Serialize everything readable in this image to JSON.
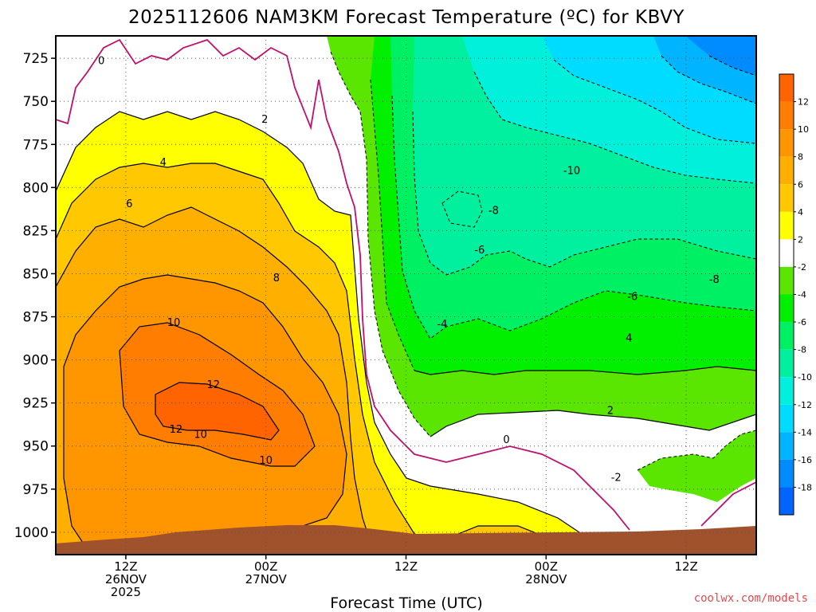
{
  "page": {
    "title": "2025112606 NAM3KM Forecast Temperature (ºC) for KBVY",
    "credit": "coolwx.com/models"
  },
  "chart_data": {
    "type": "heatmap",
    "title": "2025112606 NAM3KM Forecast Temperature (ºC) for KBVY",
    "xlabel": "Forecast Time (UTC)",
    "ylabel": "",
    "y_axis": {
      "scale": "pressure (inverted)",
      "ylim": [
        1013,
        712
      ],
      "ticks": [
        725,
        750,
        775,
        800,
        825,
        850,
        875,
        900,
        925,
        950,
        975,
        1000
      ]
    },
    "x_axis": {
      "xlim_hours": [
        6,
        66
      ],
      "ticks": [
        {
          "hour": 12,
          "line1": "12Z",
          "line2": "26NOV",
          "line3": "2025"
        },
        {
          "hour": 24,
          "line1": "00Z",
          "line2": "27NOV",
          "line3": ""
        },
        {
          "hour": 36,
          "line1": "12Z",
          "line2": "",
          "line3": ""
        },
        {
          "hour": 48,
          "line1": "00Z",
          "line2": "28NOV",
          "line3": ""
        },
        {
          "hour": 60,
          "line1": "12Z",
          "line2": "",
          "line3": ""
        }
      ]
    },
    "grid": true,
    "colorbar": {
      "placement": "right",
      "bands": [
        {
          "from": 12,
          "to": 14,
          "color": "#ff6400"
        },
        {
          "from": 10,
          "to": 12,
          "color": "#ff7d00"
        },
        {
          "from": 8,
          "to": 10,
          "color": "#ff9600"
        },
        {
          "from": 6,
          "to": 8,
          "color": "#ffaf00"
        },
        {
          "from": 4,
          "to": 6,
          "color": "#ffc800"
        },
        {
          "from": 2,
          "to": 4,
          "color": "#ffff00"
        },
        {
          "from": -2,
          "to": 2,
          "color": "#ffffff"
        },
        {
          "from": -4,
          "to": -2,
          "color": "#5ae600"
        },
        {
          "from": -6,
          "to": -4,
          "color": "#00f000"
        },
        {
          "from": -8,
          "to": -6,
          "color": "#00f064"
        },
        {
          "from": -10,
          "to": -8,
          "color": "#00f0a0"
        },
        {
          "from": -12,
          "to": -10,
          "color": "#00f0dc"
        },
        {
          "from": -14,
          "to": -12,
          "color": "#00dcff"
        },
        {
          "from": -16,
          "to": -14,
          "color": "#00b4ff"
        },
        {
          "from": -18,
          "to": -16,
          "color": "#008cff"
        },
        {
          "from": -20,
          "to": -18,
          "color": "#0064ff"
        }
      ],
      "labels": [
        "12",
        "10",
        "8",
        "6",
        "4",
        "2",
        "-2",
        "-4",
        "-6",
        "-8",
        "-10",
        "-12",
        "-14",
        "-16",
        "-18"
      ]
    },
    "contour_labels": [
      {
        "text": "0",
        "hour": 9.9,
        "p": 726
      },
      {
        "text": "2",
        "hour": 23.9,
        "p": 760
      },
      {
        "text": "4",
        "hour": 15.2,
        "p": 785
      },
      {
        "text": "6",
        "hour": 12.3,
        "p": 809
      },
      {
        "text": "8",
        "hour": 24.9,
        "p": 852
      },
      {
        "text": "10",
        "hour": 16.1,
        "p": 878
      },
      {
        "text": "12",
        "hour": 19.5,
        "p": 914
      },
      {
        "text": "12",
        "hour": 16.3,
        "p": 940
      },
      {
        "text": "10",
        "hour": 18.4,
        "p": 943
      },
      {
        "text": "10",
        "hour": 24.0,
        "p": 958
      },
      {
        "text": "-10",
        "hour": 50.2,
        "p": 790
      },
      {
        "text": "-8",
        "hour": 43.5,
        "p": 813
      },
      {
        "text": "-6",
        "hour": 42.3,
        "p": 836
      },
      {
        "text": "-4",
        "hour": 39.1,
        "p": 879
      },
      {
        "text": "-6",
        "hour": 55.4,
        "p": 863
      },
      {
        "text": "-8",
        "hour": 62.4,
        "p": 853
      },
      {
        "text": "4",
        "hour": 55.1,
        "p": 887
      },
      {
        "text": "2",
        "hour": 53.5,
        "p": 929
      },
      {
        "text": "0",
        "hour": 44.6,
        "p": 946
      },
      {
        "text": "-2",
        "hour": 54.0,
        "p": 968
      }
    ]
  }
}
